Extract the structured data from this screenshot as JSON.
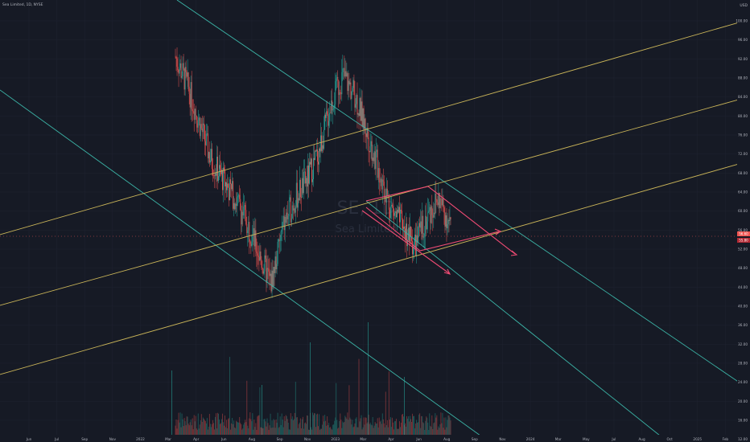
{
  "header": {
    "symbol_text": "Sea Limited, 1D, NYSE"
  },
  "watermark": {
    "ticker": "SE, 1D",
    "company": "Sea Limited"
  },
  "price_axis": {
    "currency": "USD",
    "ticks": [
      "100.00",
      "96.00",
      "92.00",
      "88.00",
      "84.00",
      "80.00",
      "76.00",
      "72.00",
      "68.00",
      "64.00",
      "60.00",
      "56.00",
      "52.00",
      "48.00",
      "44.00",
      "40.00",
      "36.00",
      "32.00",
      "28.00",
      "24.00",
      "20.00",
      "16.00",
      "12.00"
    ],
    "last_price_label": "56.60",
    "last_price_label_2": "55.80"
  },
  "time_axis": {
    "ticks": [
      "Jun",
      "Jul",
      "Sep",
      "Nov",
      "2022",
      "Mar",
      "Apr",
      "Jun",
      "Aug",
      "Sep",
      "Nov",
      "2023",
      "Mar",
      "Apr",
      "Jun",
      "Aug",
      "Sep",
      "Nov",
      "2024",
      "Mar",
      "May",
      "Jul",
      "Aug",
      "Oct",
      "2025",
      "Feb"
    ]
  },
  "colors": {
    "background": "#161a25",
    "up": "#26a69a",
    "down": "#ef5350",
    "channel_teal": "#3bb3a6",
    "channel_yellow": "#c9b458",
    "arrow_pink": "#f04b74",
    "grid": "#1f2331"
  },
  "chart_data": {
    "type": "candlestick",
    "title": "Sea Limited, 1D, NYSE",
    "ylim": [
      12,
      104
    ],
    "y_scale": "linear",
    "series": [
      {
        "name": "price",
        "approx_close": [
          92,
          86,
          78,
          70,
          66,
          62,
          57,
          50,
          44,
          56,
          62,
          66,
          72,
          82,
          88,
          84,
          76,
          68,
          60,
          56,
          52,
          58,
          62,
          56
        ]
      }
    ],
    "grid": true
  }
}
